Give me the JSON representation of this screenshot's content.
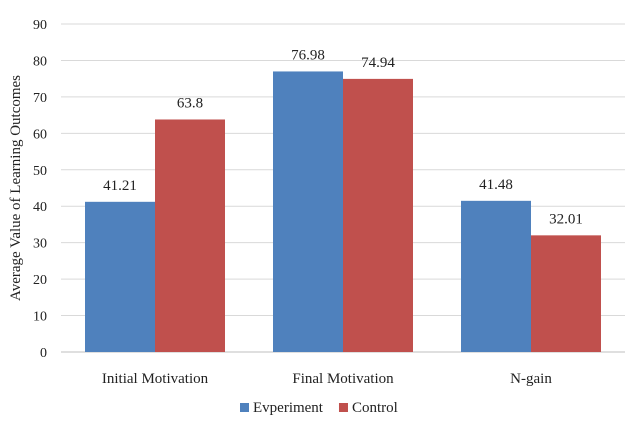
{
  "chart_data": {
    "type": "bar",
    "title": "",
    "xlabel": "",
    "ylabel": "Average Value of Learning Outcomes",
    "ylim": [
      0,
      90
    ],
    "ytick_step": 10,
    "grid": true,
    "legend_position": "bottom",
    "categories": [
      "Initial Motivation",
      "Final Motivation",
      "N-gain"
    ],
    "series": [
      {
        "name": "Evperiment",
        "color": "#4f81bd",
        "values": [
          41.21,
          76.98,
          41.48
        ]
      },
      {
        "name": "Control",
        "color": "#c0504d",
        "values": [
          63.8,
          74.94,
          32.01
        ]
      }
    ],
    "data_labels": [
      [
        "41.21",
        "76.98",
        "41.48"
      ],
      [
        "63.8",
        "74.94",
        "32.01"
      ]
    ]
  }
}
